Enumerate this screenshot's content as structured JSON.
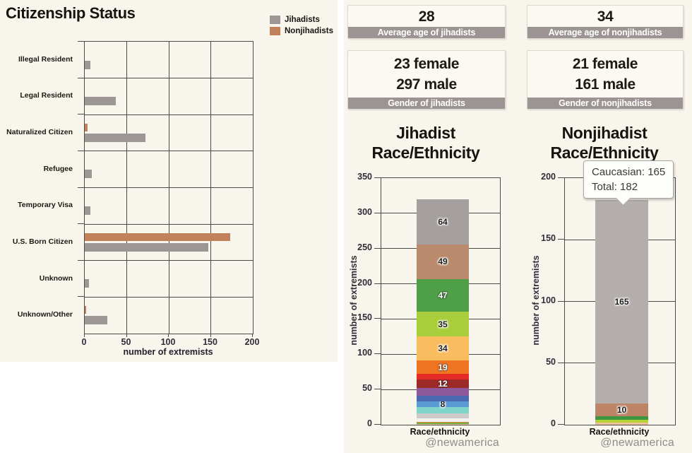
{
  "watermark": "@newamerica",
  "colors": {
    "page_background": "#ffffff",
    "panel_background": "#f8f5ec",
    "card_background": "#fbf9f2",
    "card_band": "#9b9492",
    "frame": "#4c4b47",
    "jihadists": "#9c9795",
    "nonjihadists": "#c0815b",
    "text_dark": "#17140f",
    "tick_text": "#302c38"
  },
  "stat_cards": [
    {
      "value": "28",
      "label": "Average age of jihadists"
    },
    {
      "value": "34",
      "label": "Average age of nonjihadists"
    },
    {
      "lines": [
        "23 female",
        "297 male"
      ],
      "label": "Gender of jihadists"
    },
    {
      "lines": [
        "21 female",
        "161 male"
      ],
      "label": "Gender of nonjihadists"
    }
  ],
  "chart_data": [
    {
      "id": "citizenship-status",
      "type": "bar",
      "orientation": "horizontal",
      "title": "Citizenship Status",
      "xlabel": "number of extremists",
      "xlim": [
        0,
        200
      ],
      "x_ticks": [
        0,
        50,
        100,
        150,
        200
      ],
      "grid": true,
      "legend_position": "top-right",
      "categories": [
        "Illegal Resident",
        "Legal Resident",
        "Naturalized Citizen",
        "Refugee",
        "Temporary Visa",
        "U.S. Born Citizen",
        "Unknown",
        "Unknown/Other"
      ],
      "series": [
        {
          "name": "Jihadists",
          "color": "#9c9795",
          "values": [
            7,
            37,
            72,
            8,
            7,
            147,
            5,
            27
          ]
        },
        {
          "name": "Nonjihadists",
          "color": "#c0815b",
          "values": [
            0,
            0,
            3,
            0,
            0,
            173,
            0,
            2
          ]
        }
      ]
    },
    {
      "id": "jihadist-race-ethnicity",
      "type": "stacked-bar",
      "title": "Jihadist Race/Ethnicity",
      "title_lines": [
        "Jihadist",
        "Race/Ethnicity"
      ],
      "xlabel": "Race/ethnicity",
      "ylabel": "number of extremists",
      "ylim": [
        0,
        350
      ],
      "y_ticks": [
        0,
        50,
        100,
        150,
        200,
        250,
        300,
        350
      ],
      "total": 320,
      "segments_bottom_to_top": [
        {
          "value": 1,
          "color": "#ecc5a2"
        },
        {
          "value": 2,
          "color": "#6faa3c"
        },
        {
          "value": 1,
          "color": "#e0813f"
        },
        {
          "value": 5,
          "color": "#f2f1ed"
        },
        {
          "value": 7,
          "color": "#cccbc9"
        },
        {
          "value": 9,
          "color": "#7fd5ca"
        },
        {
          "value": 8,
          "color": "#5b9bd4",
          "label": "8",
          "label_color": "#1d1d1d"
        },
        {
          "value": 8,
          "color": "#4a68af"
        },
        {
          "value": 11,
          "color": "#8f5a9c"
        },
        {
          "value": 12,
          "color": "#9c2a28",
          "label": "12",
          "label_color": "#ffffff"
        },
        {
          "value": 8,
          "color": "#e62a28"
        },
        {
          "value": 19,
          "color": "#ef7523",
          "label": "19",
          "label_color": "#ffffff"
        },
        {
          "value": 34,
          "color": "#f9bd60",
          "label": "34",
          "label_color": "#1d1d1d"
        },
        {
          "value": 35,
          "color": "#a9ce3b",
          "label": "35",
          "label_color": "#1d1d1d"
        },
        {
          "value": 47,
          "color": "#4f9e48",
          "label": "47",
          "label_color": "#ffffff"
        },
        {
          "value": 49,
          "color": "#b98a6b",
          "label": "49",
          "label_color": "#1d1d1d"
        },
        {
          "value": 64,
          "color": "#a5a09e",
          "label": "64",
          "label_color": "#1d1d1d"
        }
      ]
    },
    {
      "id": "nonjihadist-race-ethnicity",
      "type": "stacked-bar",
      "title": "Nonjihadist Race/Ethnicity",
      "title_lines": [
        "Nonjihadist",
        "Race/Ethnicity"
      ],
      "xlabel": "Race/ethnicity",
      "ylabel": "number of extremists",
      "ylim": [
        0,
        200
      ],
      "y_ticks": [
        0,
        50,
        100,
        150,
        200
      ],
      "total": 182,
      "tooltip": {
        "lines": [
          "Caucasian: 165",
          "Total: 182"
        ]
      },
      "segments_bottom_to_top": [
        {
          "value": 2,
          "color": "#eec19c"
        },
        {
          "value": 2,
          "color": "#b5d334"
        },
        {
          "value": 3,
          "color": "#3f9641"
        },
        {
          "value": 10,
          "color": "#bd8466",
          "label": "10",
          "label_color": "#1d1d1d"
        },
        {
          "value": 165,
          "color": "#b4aeac",
          "label": "165",
          "label_color": "#1d1d1d"
        }
      ]
    }
  ]
}
